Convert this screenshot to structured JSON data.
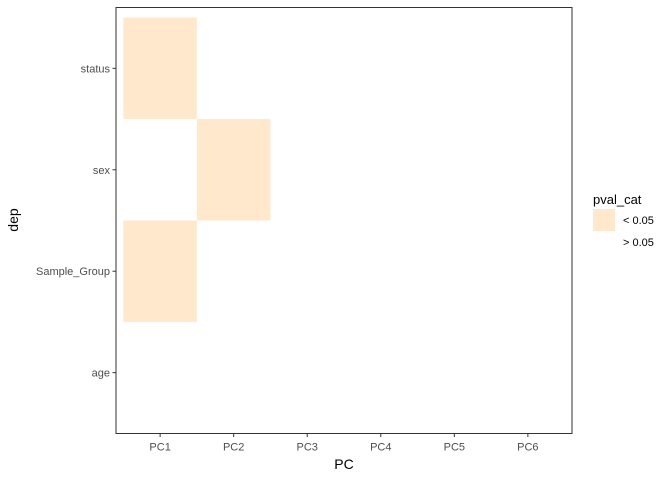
{
  "chart_data": {
    "type": "heatmap",
    "xlabel": "PC",
    "ylabel": "dep",
    "x_categories": [
      "PC1",
      "PC2",
      "PC3",
      "PC4",
      "PC5",
      "PC6"
    ],
    "y_categories": [
      "age",
      "Sample_Group",
      "sex",
      "status"
    ],
    "cells": [
      {
        "x": "PC1",
        "y": "status",
        "pval_cat": "< 0.05"
      },
      {
        "x": "PC2",
        "y": "status",
        "pval_cat": "> 0.05"
      },
      {
        "x": "PC3",
        "y": "status",
        "pval_cat": "> 0.05"
      },
      {
        "x": "PC4",
        "y": "status",
        "pval_cat": "> 0.05"
      },
      {
        "x": "PC5",
        "y": "status",
        "pval_cat": "> 0.05"
      },
      {
        "x": "PC6",
        "y": "status",
        "pval_cat": "> 0.05"
      },
      {
        "x": "PC1",
        "y": "sex",
        "pval_cat": "> 0.05"
      },
      {
        "x": "PC2",
        "y": "sex",
        "pval_cat": "< 0.05"
      },
      {
        "x": "PC3",
        "y": "sex",
        "pval_cat": "> 0.05"
      },
      {
        "x": "PC4",
        "y": "sex",
        "pval_cat": "> 0.05"
      },
      {
        "x": "PC5",
        "y": "sex",
        "pval_cat": "> 0.05"
      },
      {
        "x": "PC6",
        "y": "sex",
        "pval_cat": "> 0.05"
      },
      {
        "x": "PC1",
        "y": "Sample_Group",
        "pval_cat": "< 0.05"
      },
      {
        "x": "PC2",
        "y": "Sample_Group",
        "pval_cat": "> 0.05"
      },
      {
        "x": "PC3",
        "y": "Sample_Group",
        "pval_cat": "> 0.05"
      },
      {
        "x": "PC4",
        "y": "Sample_Group",
        "pval_cat": "> 0.05"
      },
      {
        "x": "PC5",
        "y": "Sample_Group",
        "pval_cat": "> 0.05"
      },
      {
        "x": "PC6",
        "y": "Sample_Group",
        "pval_cat": "> 0.05"
      },
      {
        "x": "PC1",
        "y": "age",
        "pval_cat": "> 0.05"
      },
      {
        "x": "PC2",
        "y": "age",
        "pval_cat": "> 0.05"
      },
      {
        "x": "PC3",
        "y": "age",
        "pval_cat": "> 0.05"
      },
      {
        "x": "PC4",
        "y": "age",
        "pval_cat": "> 0.05"
      },
      {
        "x": "PC5",
        "y": "age",
        "pval_cat": "> 0.05"
      },
      {
        "x": "PC6",
        "y": "age",
        "pval_cat": "> 0.05"
      }
    ],
    "legend": {
      "title": "pval_cat",
      "position": "right",
      "entries": [
        {
          "label": "< 0.05",
          "color": "#FFE8CC"
        },
        {
          "label": "> 0.05",
          "color": "#FFFFFF"
        }
      ]
    },
    "grid": false,
    "panel_border": true
  }
}
